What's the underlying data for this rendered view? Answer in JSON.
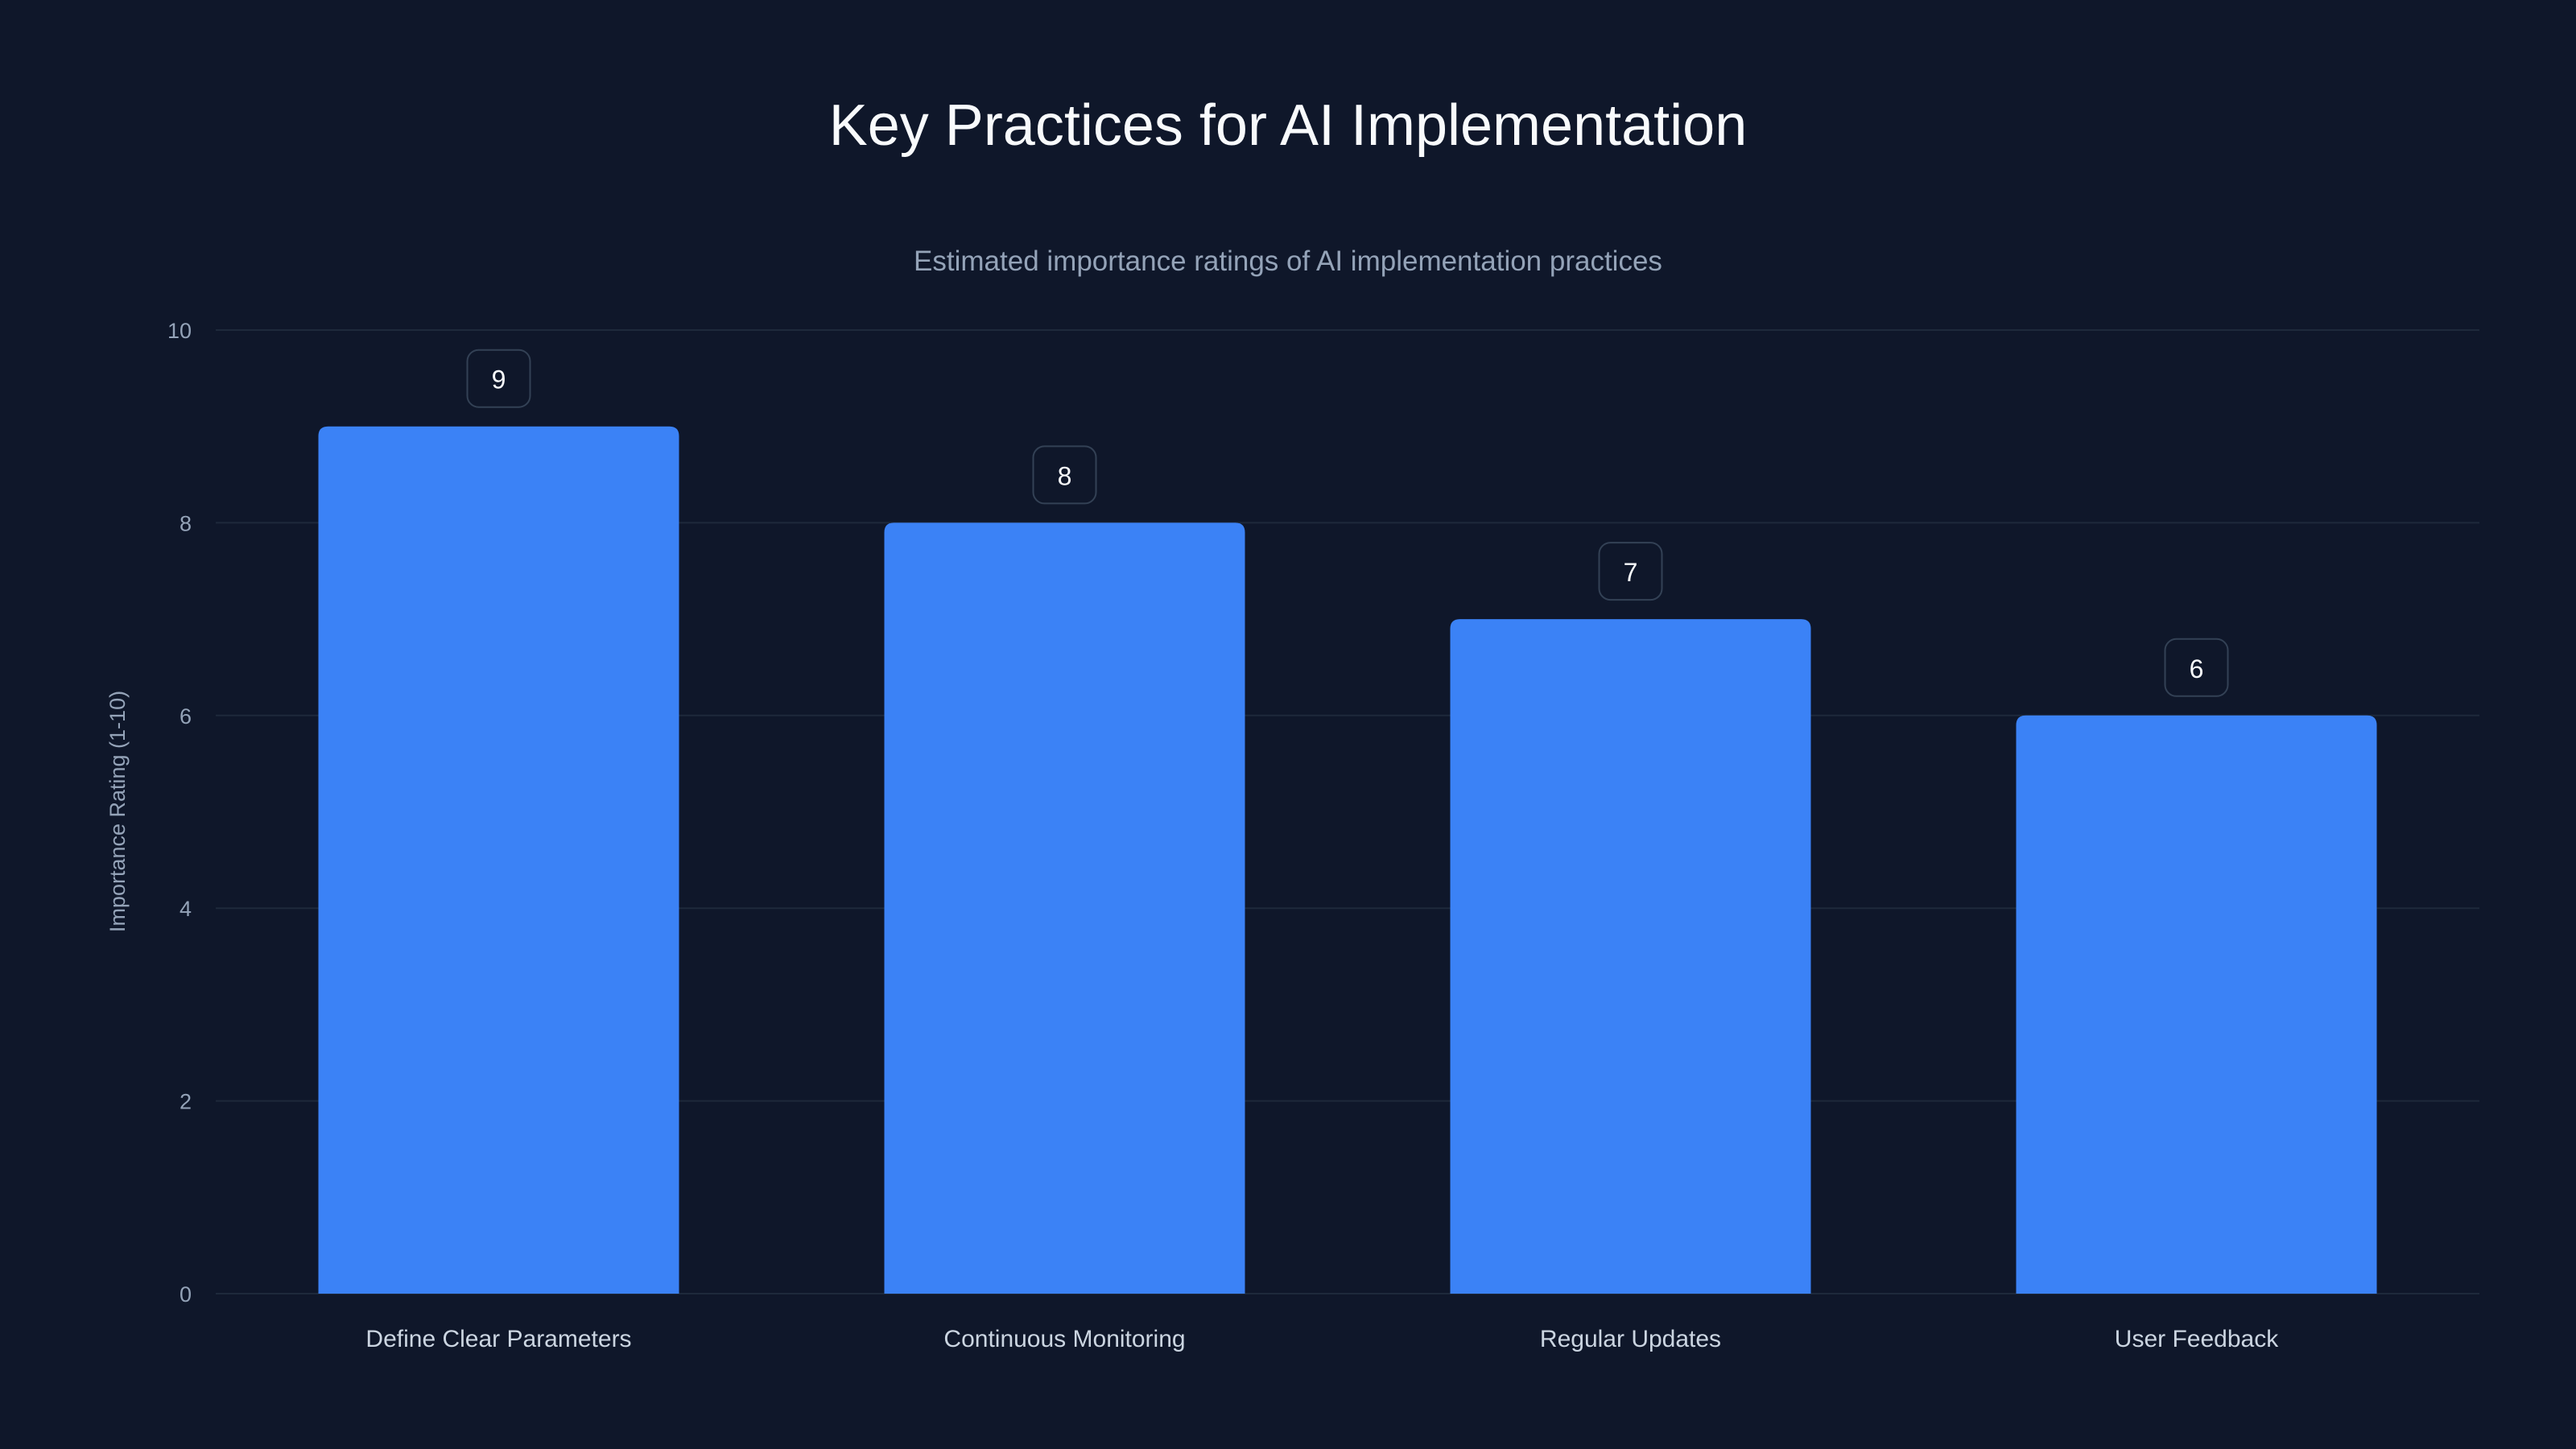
{
  "chart_data": {
    "type": "bar",
    "title": "Key Practices for AI Implementation",
    "subtitle": "Estimated importance ratings of AI implementation practices",
    "xlabel": "",
    "ylabel": "Importance Rating (1-10)",
    "categories": [
      "Define Clear Parameters",
      "Continuous Monitoring",
      "Regular Updates",
      "User Feedback"
    ],
    "values": [
      9,
      8,
      7,
      6
    ],
    "data_labels": [
      "9",
      "8",
      "7",
      "6"
    ],
    "ylim": [
      0,
      10
    ],
    "yticks": [
      0,
      2,
      4,
      6,
      8,
      10
    ],
    "grid": true,
    "legend": "none",
    "colors": {
      "bar": "#3b82f6",
      "background": "#0f172a",
      "grid": "#1e293b",
      "label_box_border": "#334155"
    }
  }
}
